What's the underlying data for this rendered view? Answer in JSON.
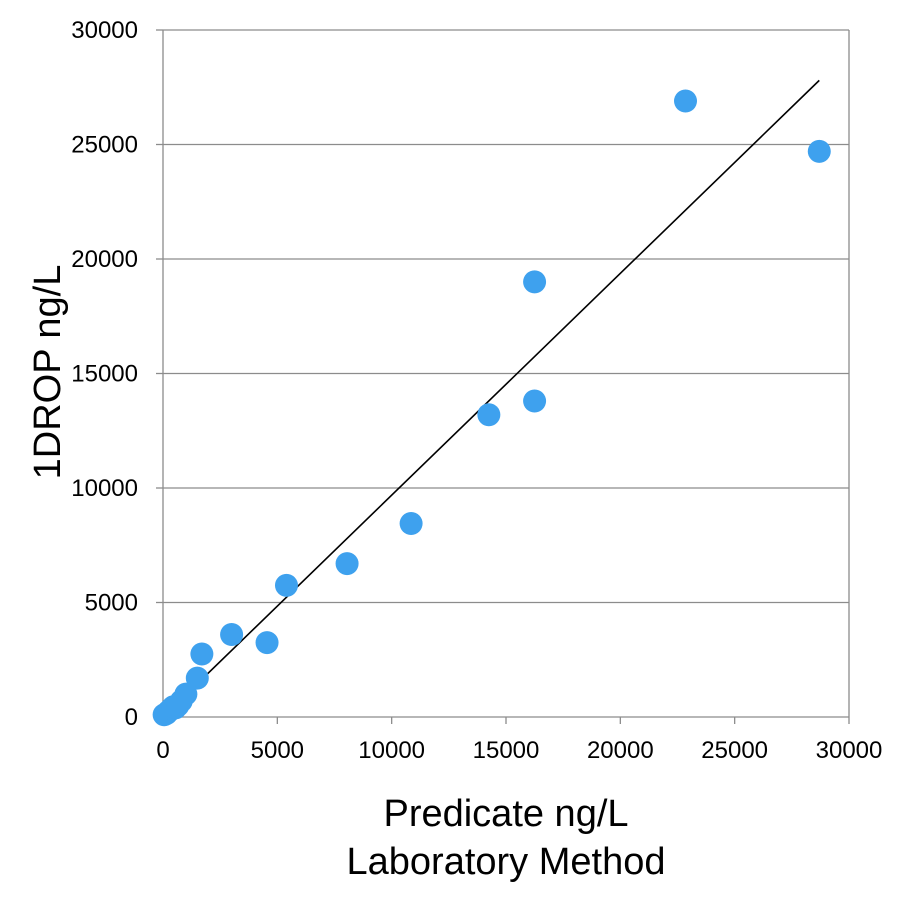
{
  "chart_data": {
    "type": "scatter",
    "title": "",
    "xlabel": [
      "Predicate ng/L",
      "Laboratory Method"
    ],
    "ylabel": "1DROP ng/L",
    "xlim": [
      0,
      30000
    ],
    "ylim": [
      0,
      30000
    ],
    "xticks": [
      "0",
      "5000",
      "10000",
      "15000",
      "20000",
      "25000",
      "30000"
    ],
    "yticks": [
      "0",
      "5000",
      "10000",
      "15000",
      "20000",
      "25000",
      "30000"
    ],
    "grid": "horizontal",
    "legend": "none",
    "point_color": "#3ea1ee",
    "line_color": "#000000",
    "points": [
      {
        "x": 50,
        "y": 100
      },
      {
        "x": 150,
        "y": 150
      },
      {
        "x": 250,
        "y": 250
      },
      {
        "x": 350,
        "y": 350
      },
      {
        "x": 450,
        "y": 450
      },
      {
        "x": 550,
        "y": 400
      },
      {
        "x": 650,
        "y": 500
      },
      {
        "x": 800,
        "y": 700
      },
      {
        "x": 1000,
        "y": 1000
      },
      {
        "x": 1500,
        "y": 1700
      },
      {
        "x": 1700,
        "y": 2750
      },
      {
        "x": 3000,
        "y": 3600
      },
      {
        "x": 4550,
        "y": 3250
      },
      {
        "x": 5400,
        "y": 5750
      },
      {
        "x": 8050,
        "y": 6700
      },
      {
        "x": 10850,
        "y": 8450
      },
      {
        "x": 14250,
        "y": 13200
      },
      {
        "x": 16250,
        "y": 13800
      },
      {
        "x": 16250,
        "y": 19000
      },
      {
        "x": 22850,
        "y": 26900
      },
      {
        "x": 28700,
        "y": 24700
      }
    ],
    "trendline": {
      "x": [
        0,
        28700
      ],
      "y": [
        0,
        27800
      ]
    }
  }
}
